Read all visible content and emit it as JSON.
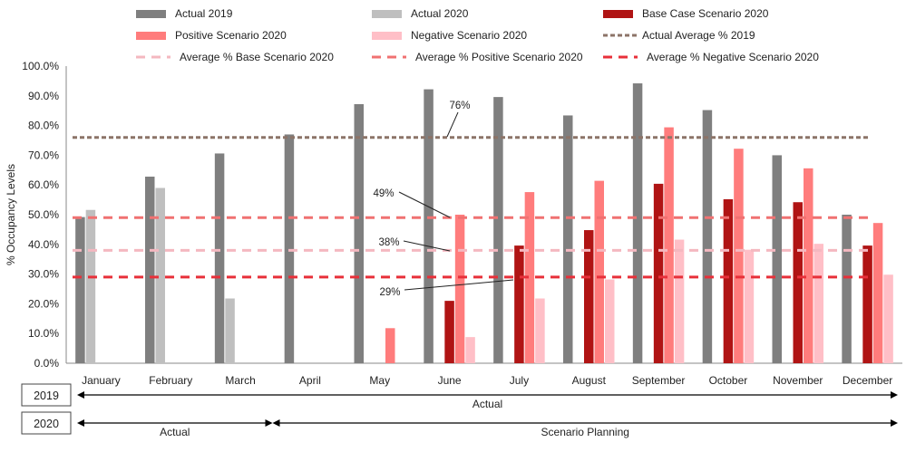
{
  "chart_data": {
    "type": "bar",
    "ylabel": "% Occupancy Levels",
    "ylim": [
      0,
      100
    ],
    "yticks": [
      "0.0%",
      "10.0%",
      "20.0%",
      "30.0%",
      "40.0%",
      "50.0%",
      "60.0%",
      "70.0%",
      "80.0%",
      "90.0%",
      "100.0%"
    ],
    "categories": [
      "January",
      "February",
      "March",
      "April",
      "May",
      "June",
      "July",
      "August",
      "September",
      "October",
      "November",
      "December"
    ],
    "series": [
      {
        "name": "Actual 2019",
        "color": "#7f7f7f",
        "values": [
          49.2,
          62.8,
          70.6,
          77.0,
          87.2,
          92.2,
          89.6,
          83.4,
          94.2,
          85.2,
          70.0,
          50.0
        ]
      },
      {
        "name": "Actual 2020",
        "color": "#bfbfbf",
        "values": [
          51.6,
          59.0,
          21.8,
          null,
          null,
          null,
          null,
          null,
          null,
          null,
          null,
          null
        ]
      },
      {
        "name": "Base Case Scenario 2020",
        "color": "#b01414",
        "values": [
          null,
          null,
          null,
          null,
          null,
          21.0,
          39.6,
          44.8,
          60.4,
          55.2,
          54.2,
          39.6
        ]
      },
      {
        "name": "Positive Scenario 2020",
        "color": "#ff7c7c",
        "values": [
          null,
          null,
          null,
          null,
          11.8,
          50.0,
          57.6,
          61.4,
          79.4,
          72.2,
          65.6,
          47.2
        ]
      },
      {
        "name": "Negative Scenario 2020",
        "color": "#ffbfc7",
        "values": [
          null,
          null,
          null,
          null,
          null,
          8.8,
          21.8,
          28.2,
          41.6,
          38.2,
          40.2,
          29.8
        ]
      }
    ],
    "averages": [
      {
        "name": "Actual Average % 2019",
        "value": 76,
        "color": "#8c7468",
        "dash": "dotted"
      },
      {
        "name": "Average % Base Scenario 2020",
        "value": 38,
        "color": "#f4b8c0",
        "dash": "dashed"
      },
      {
        "name": "Average % Positive Scenario 2020",
        "value": 49,
        "color": "#f07272",
        "dash": "dashed"
      },
      {
        "name": "Average % Negative Scenario 2020",
        "value": 29,
        "color": "#e8303a",
        "dash": "dashed"
      }
    ],
    "annotations": [
      {
        "text": "76%",
        "ref": 76
      },
      {
        "text": "49%",
        "ref": 49
      },
      {
        "text": "38%",
        "ref": 38
      },
      {
        "text": "29%",
        "ref": 29
      }
    ],
    "legend": {
      "position": "top",
      "items": [
        {
          "label": "Actual 2019",
          "kind": "bar",
          "color": "#7f7f7f"
        },
        {
          "label": "Actual 2020",
          "kind": "bar",
          "color": "#bfbfbf"
        },
        {
          "label": "Base Case Scenario 2020",
          "kind": "bar",
          "color": "#b01414"
        },
        {
          "label": "Positive Scenario 2020",
          "kind": "bar",
          "color": "#ff7c7c"
        },
        {
          "label": "Negative Scenario 2020",
          "kind": "bar",
          "color": "#ffbfc7"
        },
        {
          "label": "Actual Average % 2019",
          "kind": "dotted",
          "color": "#8c7468"
        },
        {
          "label": "Average % Base Scenario 2020",
          "kind": "dashed",
          "color": "#f4b8c0"
        },
        {
          "label": "Average % Positive Scenario 2020",
          "kind": "dashed",
          "color": "#f07272"
        },
        {
          "label": "Average % Negative Scenario 2020",
          "kind": "dashed",
          "color": "#e8303a"
        }
      ]
    },
    "timeline": [
      {
        "row": "2019",
        "segments": [
          {
            "label": "Actual",
            "from": "January",
            "to": "December"
          }
        ]
      },
      {
        "row": "2020",
        "segments": [
          {
            "label": "Actual",
            "from": "January",
            "to": "March"
          },
          {
            "label": "Scenario Planning",
            "from": "April",
            "to": "December"
          }
        ]
      }
    ]
  }
}
